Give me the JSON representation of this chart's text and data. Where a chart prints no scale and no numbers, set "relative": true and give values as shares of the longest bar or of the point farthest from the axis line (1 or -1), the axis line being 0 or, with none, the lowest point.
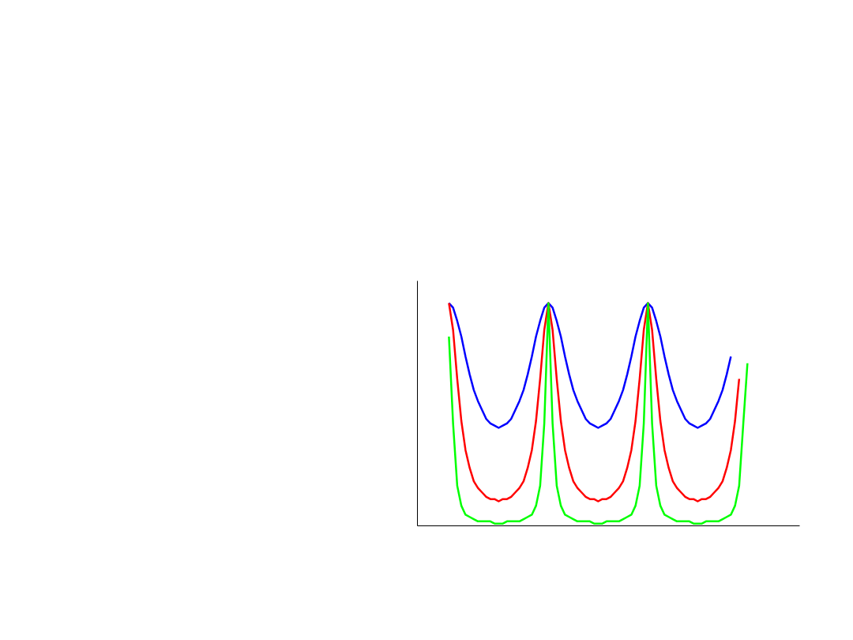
{
  "chart_data": {
    "type": "line",
    "relative": true,
    "marker": "none",
    "line_style": "solid",
    "categories": [
      null,
      null,
      null,
      null,
      null,
      null,
      null,
      null,
      null,
      null,
      null,
      null,
      null,
      null,
      null,
      null,
      null,
      null,
      null,
      null,
      null,
      null,
      null,
      null,
      null,
      null,
      null,
      null,
      null,
      null,
      null,
      null,
      null,
      null,
      null,
      null,
      null,
      null,
      null,
      null,
      null,
      null,
      null,
      null,
      null,
      null,
      null,
      null,
      null,
      null,
      null,
      null,
      null,
      null,
      null,
      null,
      null,
      null,
      null,
      null,
      null,
      null,
      null,
      null,
      null,
      null,
      null,
      null,
      null,
      null,
      null,
      null,
      null
    ],
    "series": [
      {
        "color": "#0000ff",
        "values": [
          1.0,
          0.98,
          0.92,
          0.85,
          0.76,
          0.68,
          0.61,
          0.56,
          0.52,
          0.48,
          0.46,
          0.45,
          0.44,
          0.45,
          0.46,
          0.48,
          0.52,
          0.56,
          0.61,
          0.68,
          0.76,
          0.85,
          0.92,
          0.98,
          1.0,
          0.98,
          0.92,
          0.85,
          0.76,
          0.68,
          0.61,
          0.56,
          0.52,
          0.48,
          0.46,
          0.45,
          0.44,
          0.45,
          0.46,
          0.48,
          0.52,
          0.56,
          0.61,
          0.68,
          0.76,
          0.85,
          0.92,
          0.98,
          1.0,
          0.98,
          0.92,
          0.85,
          0.76,
          0.68,
          0.61,
          0.56,
          0.52,
          0.48,
          0.46,
          0.45,
          0.44,
          0.45,
          0.46,
          0.48,
          0.52,
          0.56,
          0.61,
          0.68,
          0.76,
          null,
          null,
          null,
          null
        ]
      },
      {
        "color": "#ff0000",
        "values": [
          1.0,
          0.88,
          0.66,
          0.47,
          0.34,
          0.26,
          0.2,
          0.17,
          0.15,
          0.13,
          0.12,
          0.12,
          0.11,
          0.12,
          0.12,
          0.13,
          0.15,
          0.17,
          0.2,
          0.26,
          0.34,
          0.47,
          0.66,
          0.88,
          1.0,
          0.88,
          0.66,
          0.47,
          0.34,
          0.26,
          0.2,
          0.17,
          0.15,
          0.13,
          0.12,
          0.12,
          0.11,
          0.12,
          0.12,
          0.13,
          0.15,
          0.17,
          0.2,
          0.26,
          0.34,
          0.47,
          0.66,
          0.88,
          1.0,
          0.88,
          0.66,
          0.47,
          0.34,
          0.26,
          0.2,
          0.17,
          0.15,
          0.13,
          0.12,
          0.12,
          0.11,
          0.12,
          0.12,
          0.13,
          0.15,
          0.17,
          0.2,
          0.26,
          0.34,
          0.47,
          0.66,
          null,
          null
        ]
      },
      {
        "color": "#00ff00",
        "values": [
          0.85,
          0.46,
          0.18,
          0.09,
          0.05,
          0.04,
          0.03,
          0.02,
          0.02,
          0.02,
          0.02,
          0.01,
          0.01,
          0.01,
          0.02,
          0.02,
          0.02,
          0.02,
          0.03,
          0.04,
          0.05,
          0.09,
          0.18,
          0.46,
          1.0,
          0.46,
          0.18,
          0.09,
          0.05,
          0.04,
          0.03,
          0.02,
          0.02,
          0.02,
          0.02,
          0.01,
          0.01,
          0.01,
          0.02,
          0.02,
          0.02,
          0.02,
          0.03,
          0.04,
          0.05,
          0.09,
          0.18,
          0.46,
          1.0,
          0.46,
          0.18,
          0.09,
          0.05,
          0.04,
          0.03,
          0.02,
          0.02,
          0.02,
          0.02,
          0.01,
          0.01,
          0.01,
          0.02,
          0.02,
          0.02,
          0.02,
          0.03,
          0.04,
          0.05,
          0.09,
          0.18,
          0.46,
          0.73
        ]
      }
    ]
  }
}
